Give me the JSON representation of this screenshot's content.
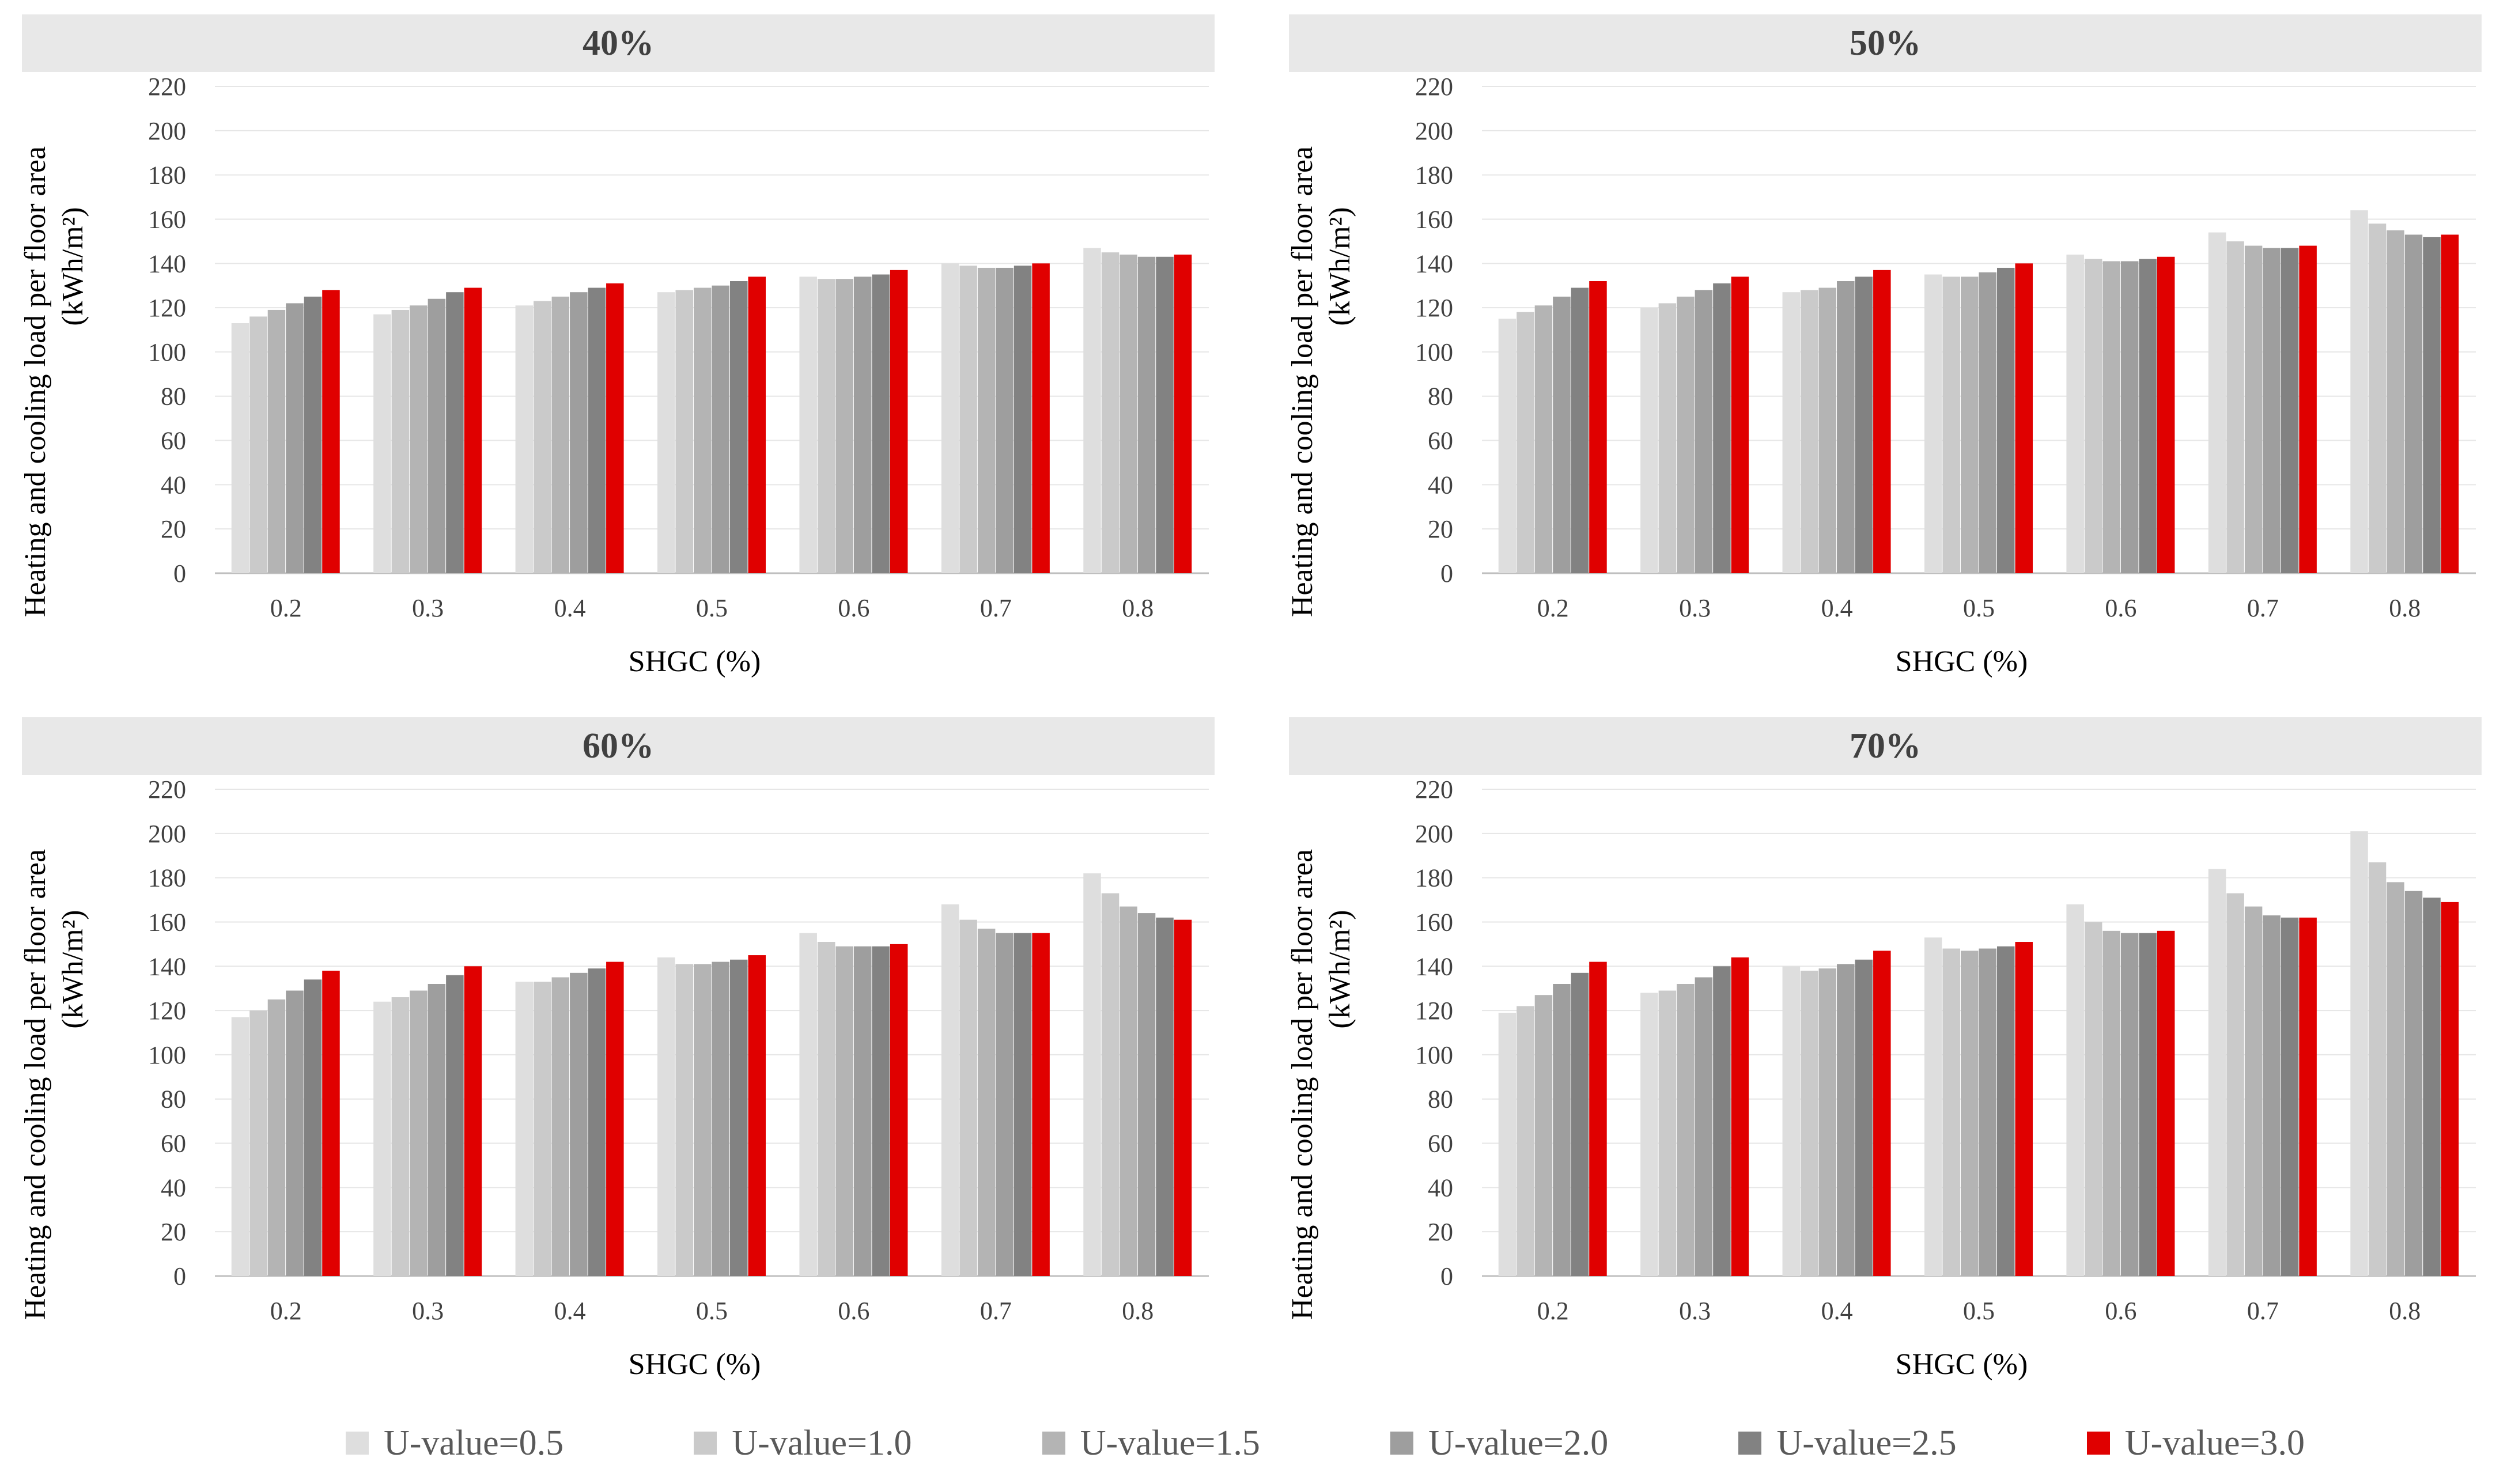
{
  "chart_data": [
    {
      "type": "bar",
      "title": "40%",
      "xlabel": "SHGC (%)",
      "ylabel_line1": "Heating and cooling load per floor area",
      "ylabel_line2": "(kWh/m²)",
      "ylim": [
        0,
        220
      ],
      "yticks": [
        "0",
        "20",
        "40",
        "60",
        "80",
        "100",
        "120",
        "140",
        "160",
        "180",
        "200",
        "220"
      ],
      "categories": [
        "0.2",
        "0.3",
        "0.4",
        "0.5",
        "0.6",
        "0.7",
        "0.8"
      ],
      "series": [
        {
          "name": "U-value=0.5",
          "values": [
            113,
            117,
            121,
            127,
            134,
            140,
            147
          ]
        },
        {
          "name": "U-value=1.0",
          "values": [
            116,
            119,
            123,
            128,
            133,
            139,
            145
          ]
        },
        {
          "name": "U-value=1.5",
          "values": [
            119,
            121,
            125,
            129,
            133,
            138,
            144
          ]
        },
        {
          "name": "U-value=2.0",
          "values": [
            122,
            124,
            127,
            130,
            134,
            138,
            143
          ]
        },
        {
          "name": "U-value=2.5",
          "values": [
            125,
            127,
            129,
            132,
            135,
            139,
            143
          ]
        },
        {
          "name": "U-value=3.0",
          "values": [
            128,
            129,
            131,
            134,
            137,
            140,
            144
          ]
        }
      ]
    },
    {
      "type": "bar",
      "title": "50%",
      "xlabel": "SHGC (%)",
      "ylabel_line1": "Heating and cooling load per floor area",
      "ylabel_line2": "(kWh/m²)",
      "ylim": [
        0,
        220
      ],
      "yticks": [
        "0",
        "20",
        "40",
        "60",
        "80",
        "100",
        "120",
        "140",
        "160",
        "180",
        "200",
        "220"
      ],
      "categories": [
        "0.2",
        "0.3",
        "0.4",
        "0.5",
        "0.6",
        "0.7",
        "0.8"
      ],
      "series": [
        {
          "name": "U-value=0.5",
          "values": [
            115,
            120,
            127,
            135,
            144,
            154,
            164
          ]
        },
        {
          "name": "U-value=1.0",
          "values": [
            118,
            122,
            128,
            134,
            142,
            150,
            158
          ]
        },
        {
          "name": "U-value=1.5",
          "values": [
            121,
            125,
            129,
            134,
            141,
            148,
            155
          ]
        },
        {
          "name": "U-value=2.0",
          "values": [
            125,
            128,
            132,
            136,
            141,
            147,
            153
          ]
        },
        {
          "name": "U-value=2.5",
          "values": [
            129,
            131,
            134,
            138,
            142,
            147,
            152
          ]
        },
        {
          "name": "U-value=3.0",
          "values": [
            132,
            134,
            137,
            140,
            143,
            148,
            153
          ]
        }
      ]
    },
    {
      "type": "bar",
      "title": "60%",
      "xlabel": "SHGC (%)",
      "ylabel_line1": "Heating and cooling load per floor area",
      "ylabel_line2": "(kWh/m²)",
      "ylim": [
        0,
        220
      ],
      "yticks": [
        "0",
        "20",
        "40",
        "60",
        "80",
        "100",
        "120",
        "140",
        "160",
        "180",
        "200",
        "220"
      ],
      "categories": [
        "0.2",
        "0.3",
        "0.4",
        "0.5",
        "0.6",
        "0.7",
        "0.8"
      ],
      "series": [
        {
          "name": "U-value=0.5",
          "values": [
            117,
            124,
            133,
            144,
            155,
            168,
            182
          ]
        },
        {
          "name": "U-value=1.0",
          "values": [
            120,
            126,
            133,
            141,
            151,
            161,
            173
          ]
        },
        {
          "name": "U-value=1.5",
          "values": [
            125,
            129,
            135,
            141,
            149,
            157,
            167
          ]
        },
        {
          "name": "U-value=2.0",
          "values": [
            129,
            132,
            137,
            142,
            149,
            155,
            164
          ]
        },
        {
          "name": "U-value=2.5",
          "values": [
            134,
            136,
            139,
            143,
            149,
            155,
            162
          ]
        },
        {
          "name": "U-value=3.0",
          "values": [
            138,
            140,
            142,
            145,
            150,
            155,
            161
          ]
        }
      ]
    },
    {
      "type": "bar",
      "title": "70%",
      "xlabel": "SHGC (%)",
      "ylabel_line1": "Heating and cooling load per floor area",
      "ylabel_line2": "(kWh/m²)",
      "ylim": [
        0,
        220
      ],
      "yticks": [
        "0",
        "20",
        "40",
        "60",
        "80",
        "100",
        "120",
        "140",
        "160",
        "180",
        "200",
        "220"
      ],
      "categories": [
        "0.2",
        "0.3",
        "0.4",
        "0.5",
        "0.6",
        "0.7",
        "0.8"
      ],
      "series": [
        {
          "name": "U-value=0.5",
          "values": [
            119,
            128,
            140,
            153,
            168,
            184,
            201
          ]
        },
        {
          "name": "U-value=1.0",
          "values": [
            122,
            129,
            138,
            148,
            160,
            173,
            187
          ]
        },
        {
          "name": "U-value=1.5",
          "values": [
            127,
            132,
            139,
            147,
            156,
            167,
            178
          ]
        },
        {
          "name": "U-value=2.0",
          "values": [
            132,
            135,
            141,
            148,
            155,
            163,
            174
          ]
        },
        {
          "name": "U-value=2.5",
          "values": [
            137,
            140,
            143,
            149,
            155,
            162,
            171
          ]
        },
        {
          "name": "U-value=3.0",
          "values": [
            142,
            144,
            147,
            151,
            156,
            162,
            169
          ]
        }
      ]
    }
  ],
  "series_colors": [
    "#dedede",
    "#cacaca",
    "#b4b4b4",
    "#9e9e9e",
    "#828282",
    "#e00000"
  ],
  "legend": [
    {
      "label": "U-value=0.5",
      "color": "#dedede"
    },
    {
      "label": "U-value=1.0",
      "color": "#cacaca"
    },
    {
      "label": "U-value=1.5",
      "color": "#b4b4b4"
    },
    {
      "label": "U-value=2.0",
      "color": "#9e9e9e"
    },
    {
      "label": "U-value=2.5",
      "color": "#828282"
    },
    {
      "label": "U-value=3.0",
      "color": "#e00000"
    }
  ]
}
